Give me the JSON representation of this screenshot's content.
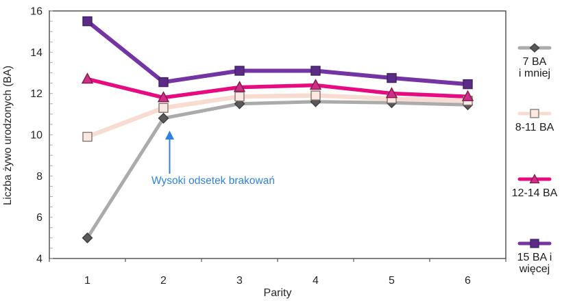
{
  "page": {
    "background": "#ffffff"
  },
  "chart_data": {
    "type": "line",
    "title": "",
    "xlabel": "Parity",
    "ylabel": "Liczba żywo urodzonych (BA)",
    "x_categories": [
      "1",
      "2",
      "3",
      "4",
      "5",
      "6"
    ],
    "y_ticks": [
      "4",
      "6",
      "8",
      "10",
      "12",
      "14",
      "16"
    ],
    "ylim": [
      4,
      16
    ],
    "y_minor_step": 0.5,
    "grid": false,
    "legend_position": "right",
    "axis_color": "#555555",
    "minor_tick_color": "#aaaaaa",
    "series": [
      {
        "name": "7 BA\ni mniej",
        "marker": "diamond",
        "line_color": "#ababab",
        "marker_fill": "#595959",
        "marker_stroke": "#3f3f3f",
        "line_width": 5,
        "values": [
          5.0,
          10.8,
          11.5,
          11.6,
          11.55,
          11.45
        ]
      },
      {
        "name": "8-11 BA",
        "marker": "square-open",
        "line_color": "#f8dcd2",
        "marker_fill": "#fbe8e0",
        "marker_stroke": "#847470",
        "line_width": 6.5,
        "values": [
          9.9,
          11.3,
          11.85,
          11.9,
          11.75,
          11.65
        ]
      },
      {
        "name": "12-14 BA",
        "marker": "triangle",
        "line_color": "#e60b80",
        "marker_fill": "#cf2f87",
        "marker_stroke": "#7e1a49",
        "line_width": 5.5,
        "values": [
          12.7,
          11.8,
          12.3,
          12.4,
          12.0,
          11.85
        ]
      },
      {
        "name": "15 BA i\nwięcej",
        "marker": "square",
        "line_color": "#7434a4",
        "marker_fill": "#5b2c87",
        "marker_stroke": "#41215f",
        "line_width": 6,
        "values": [
          15.5,
          12.55,
          13.1,
          13.1,
          12.75,
          12.45
        ]
      }
    ],
    "annotation": {
      "text": "Wysoki odsetek brakowań",
      "color": "#2f82dd",
      "target_category": "2"
    }
  }
}
